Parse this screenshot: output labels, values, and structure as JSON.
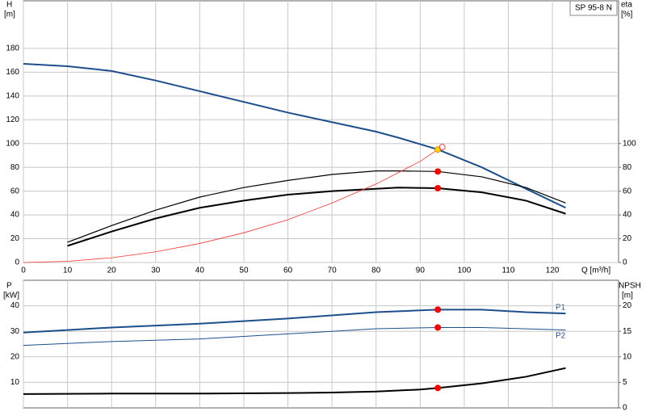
{
  "chart_data": [
    {
      "type": "line",
      "legend_label": "SP 95-8 N",
      "ylabel": "H",
      "yunit": "[m]",
      "y2label": "eta",
      "y2unit": "[%]",
      "xlabel": "Q [m³/h]",
      "xlim": [
        0,
        135
      ],
      "xticks": [
        0,
        10,
        20,
        30,
        40,
        50,
        60,
        70,
        80,
        90,
        100,
        110,
        120
      ],
      "ylim": [
        0,
        220
      ],
      "yticks": [
        0,
        20,
        40,
        60,
        80,
        100,
        120,
        140,
        160,
        180
      ],
      "y2lim": [
        0,
        220
      ],
      "y2ticks": [
        0,
        20,
        40,
        60,
        80,
        100
      ],
      "grid": true,
      "series": [
        {
          "name": "H",
          "color": "#1d4f8c",
          "width": 2,
          "axis": "y",
          "x": [
            0,
            10,
            20,
            30,
            40,
            50,
            60,
            70,
            80,
            85,
            94,
            104,
            114,
            123
          ],
          "values": [
            167,
            165,
            161,
            153,
            144,
            135,
            126,
            118,
            110,
            105,
            95,
            80,
            62,
            46
          ]
        },
        {
          "name": "eta",
          "color": "#000000",
          "width": 1.2,
          "axis": "y2",
          "x": [
            10,
            20,
            30,
            40,
            50,
            60,
            70,
            80,
            85,
            94,
            104,
            114,
            123
          ],
          "values": [
            17,
            31,
            44,
            55,
            63,
            69,
            74,
            77,
            77,
            76.5,
            72,
            63,
            50
          ]
        },
        {
          "name": "eta2",
          "color": "#000000",
          "width": 2,
          "axis": "y2",
          "x": [
            10,
            20,
            30,
            40,
            50,
            60,
            70,
            80,
            85,
            94,
            104,
            114,
            123
          ],
          "values": [
            14,
            26,
            37,
            46,
            52,
            57,
            60,
            62,
            63,
            62.5,
            59,
            52,
            41
          ]
        },
        {
          "name": "system",
          "color": "#ff3030",
          "width": 0.8,
          "axis": "y",
          "x": [
            0,
            10,
            20,
            30,
            40,
            50,
            60,
            70,
            80,
            90,
            94
          ],
          "values": [
            0,
            1,
            4,
            9,
            16,
            25,
            36,
            50,
            66,
            85,
            95
          ]
        }
      ],
      "points": [
        {
          "x": 94,
          "y": 95,
          "axis": "y",
          "fill": "#ffd700",
          "color": "#e09000"
        },
        {
          "x": 95,
          "y": 97,
          "axis": "y",
          "fill": "none",
          "color": "#ff4040"
        },
        {
          "x": 94,
          "y": 76.5,
          "axis": "y2",
          "fill": "#ff0000",
          "color": "#ff0000"
        },
        {
          "x": 94,
          "y": 62.5,
          "axis": "y2",
          "fill": "#ff0000",
          "color": "#ff0000"
        }
      ]
    },
    {
      "type": "line",
      "ylabel": "P",
      "yunit": "[kW]",
      "y2label": "NPSH",
      "y2unit": "[m]",
      "xlim": [
        0,
        135
      ],
      "ylim": [
        0,
        50
      ],
      "yticks": [
        10,
        20,
        30,
        40
      ],
      "y2lim": [
        0,
        25
      ],
      "y2ticks": [
        0,
        5,
        10,
        15,
        20
      ],
      "grid": true,
      "series": [
        {
          "name": "P1",
          "color": "#1d4f8c",
          "width": 2,
          "axis": "y",
          "x": [
            0,
            10,
            20,
            40,
            60,
            80,
            94,
            104,
            114,
            123
          ],
          "values": [
            29.5,
            30.5,
            31.5,
            33,
            35,
            37.5,
            38.5,
            38.5,
            37.5,
            37
          ]
        },
        {
          "name": "P2",
          "color": "#1d4f8c",
          "width": 1,
          "axis": "y",
          "x": [
            0,
            20,
            40,
            60,
            80,
            94,
            104,
            123
          ],
          "values": [
            24.5,
            26,
            27,
            29,
            31,
            31.5,
            31.5,
            30.5
          ]
        },
        {
          "name": "NPSH",
          "color": "#000000",
          "width": 2,
          "axis": "y2",
          "x": [
            0,
            20,
            40,
            60,
            70,
            80,
            90,
            94,
            104,
            114,
            123
          ],
          "values": [
            2.7,
            2.8,
            2.8,
            2.9,
            3,
            3.2,
            3.6,
            3.9,
            4.8,
            6.1,
            7.8
          ]
        }
      ],
      "points": [
        {
          "x": 94,
          "y": 38.5,
          "axis": "y",
          "fill": "#ff0000",
          "color": "#ff0000"
        },
        {
          "x": 94,
          "y": 31.5,
          "axis": "y",
          "fill": "#ff0000",
          "color": "#ff0000"
        },
        {
          "x": 94,
          "y": 3.9,
          "axis": "y2",
          "fill": "#ff0000",
          "color": "#ff0000"
        }
      ]
    }
  ]
}
